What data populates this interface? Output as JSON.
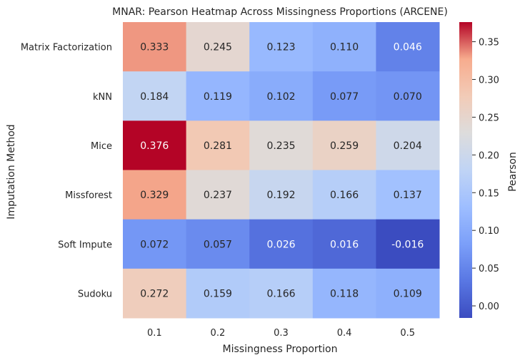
{
  "chart_data": {
    "type": "heatmap",
    "title": "MNAR: Pearson Heatmap Across Missingness Proportions (ARCENE)",
    "xlabel": "Missingness Proportion",
    "ylabel": "Imputation Method",
    "x_categories": [
      "0.1",
      "0.2",
      "0.3",
      "0.4",
      "0.5"
    ],
    "y_categories": [
      "Matrix Factorization",
      "kNN",
      "Mice",
      "Missforest",
      "Soft Impute",
      "Sudoku"
    ],
    "values": [
      [
        0.333,
        0.245,
        0.123,
        0.11,
        0.046
      ],
      [
        0.184,
        0.119,
        0.102,
        0.077,
        0.07
      ],
      [
        0.376,
        0.281,
        0.235,
        0.259,
        0.204
      ],
      [
        0.329,
        0.237,
        0.192,
        0.166,
        0.137
      ],
      [
        0.072,
        0.057,
        0.026,
        0.016,
        -0.016
      ],
      [
        0.272,
        0.159,
        0.166,
        0.118,
        0.109
      ]
    ],
    "value_labels": [
      [
        "0.333",
        "0.245",
        "0.123",
        "0.110",
        "0.046"
      ],
      [
        "0.184",
        "0.119",
        "0.102",
        "0.077",
        "0.070"
      ],
      [
        "0.376",
        "0.281",
        "0.235",
        "0.259",
        "0.204"
      ],
      [
        "0.329",
        "0.237",
        "0.192",
        "0.166",
        "0.137"
      ],
      [
        "0.072",
        "0.057",
        "0.026",
        "0.016",
        "-0.016"
      ],
      [
        "0.272",
        "0.159",
        "0.166",
        "0.118",
        "0.109"
      ]
    ],
    "colormap": "coolwarm",
    "colorbar": {
      "label": "Pearson",
      "range": [
        -0.016,
        0.376
      ],
      "ticks": [
        "0.00",
        "0.05",
        "0.10",
        "0.15",
        "0.20",
        "0.25",
        "0.30",
        "0.35"
      ]
    },
    "colors": {
      "cold": "#3b4cc0",
      "neutral": "#dddcdc",
      "hot": "#b40426",
      "light_text": "#ffffff",
      "dark_text": "#262626"
    }
  }
}
